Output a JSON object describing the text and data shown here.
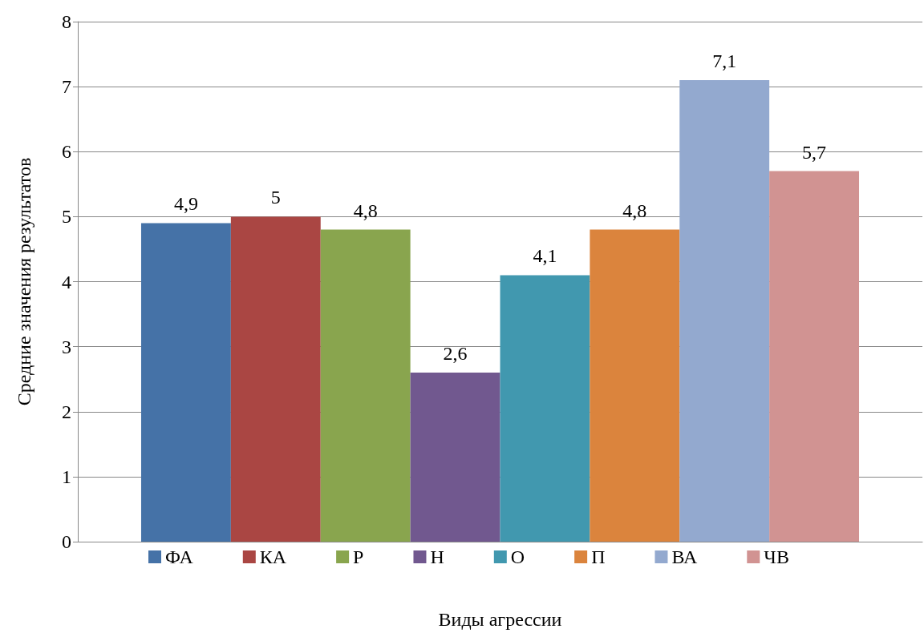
{
  "chart_data": {
    "type": "bar",
    "xlabel": "Виды агрессии",
    "ylabel": "Средние значения результатов",
    "categories": [
      null
    ],
    "series": [
      {
        "name": "ФА",
        "color": "#4572a7",
        "values": [
          4.9
        ],
        "value_labels": [
          "4,9"
        ]
      },
      {
        "name": "КА",
        "color": "#aa4643",
        "values": [
          5
        ],
        "value_labels": [
          "5"
        ]
      },
      {
        "name": "Р",
        "color": "#89a54e",
        "values": [
          4.8
        ],
        "value_labels": [
          "4,8"
        ]
      },
      {
        "name": "Н",
        "color": "#71588f",
        "values": [
          2.6
        ],
        "value_labels": [
          "2,6"
        ]
      },
      {
        "name": "О",
        "color": "#4198af",
        "values": [
          4.1
        ],
        "value_labels": [
          "4,1"
        ]
      },
      {
        "name": "П",
        "color": "#db843d",
        "values": [
          4.8
        ],
        "value_labels": [
          "4,8"
        ]
      },
      {
        "name": "ВА",
        "color": "#93a9cf",
        "values": [
          7.1
        ],
        "value_labels": [
          "7,1"
        ]
      },
      {
        "name": "ЧВ",
        "color": "#d19392",
        "values": [
          5.7
        ],
        "value_labels": [
          "5,7"
        ]
      }
    ],
    "ylim": [
      0,
      8
    ],
    "yticks": [
      0,
      1,
      2,
      3,
      4,
      5,
      6,
      7,
      8
    ],
    "grid": "y",
    "legend": "bottom"
  }
}
